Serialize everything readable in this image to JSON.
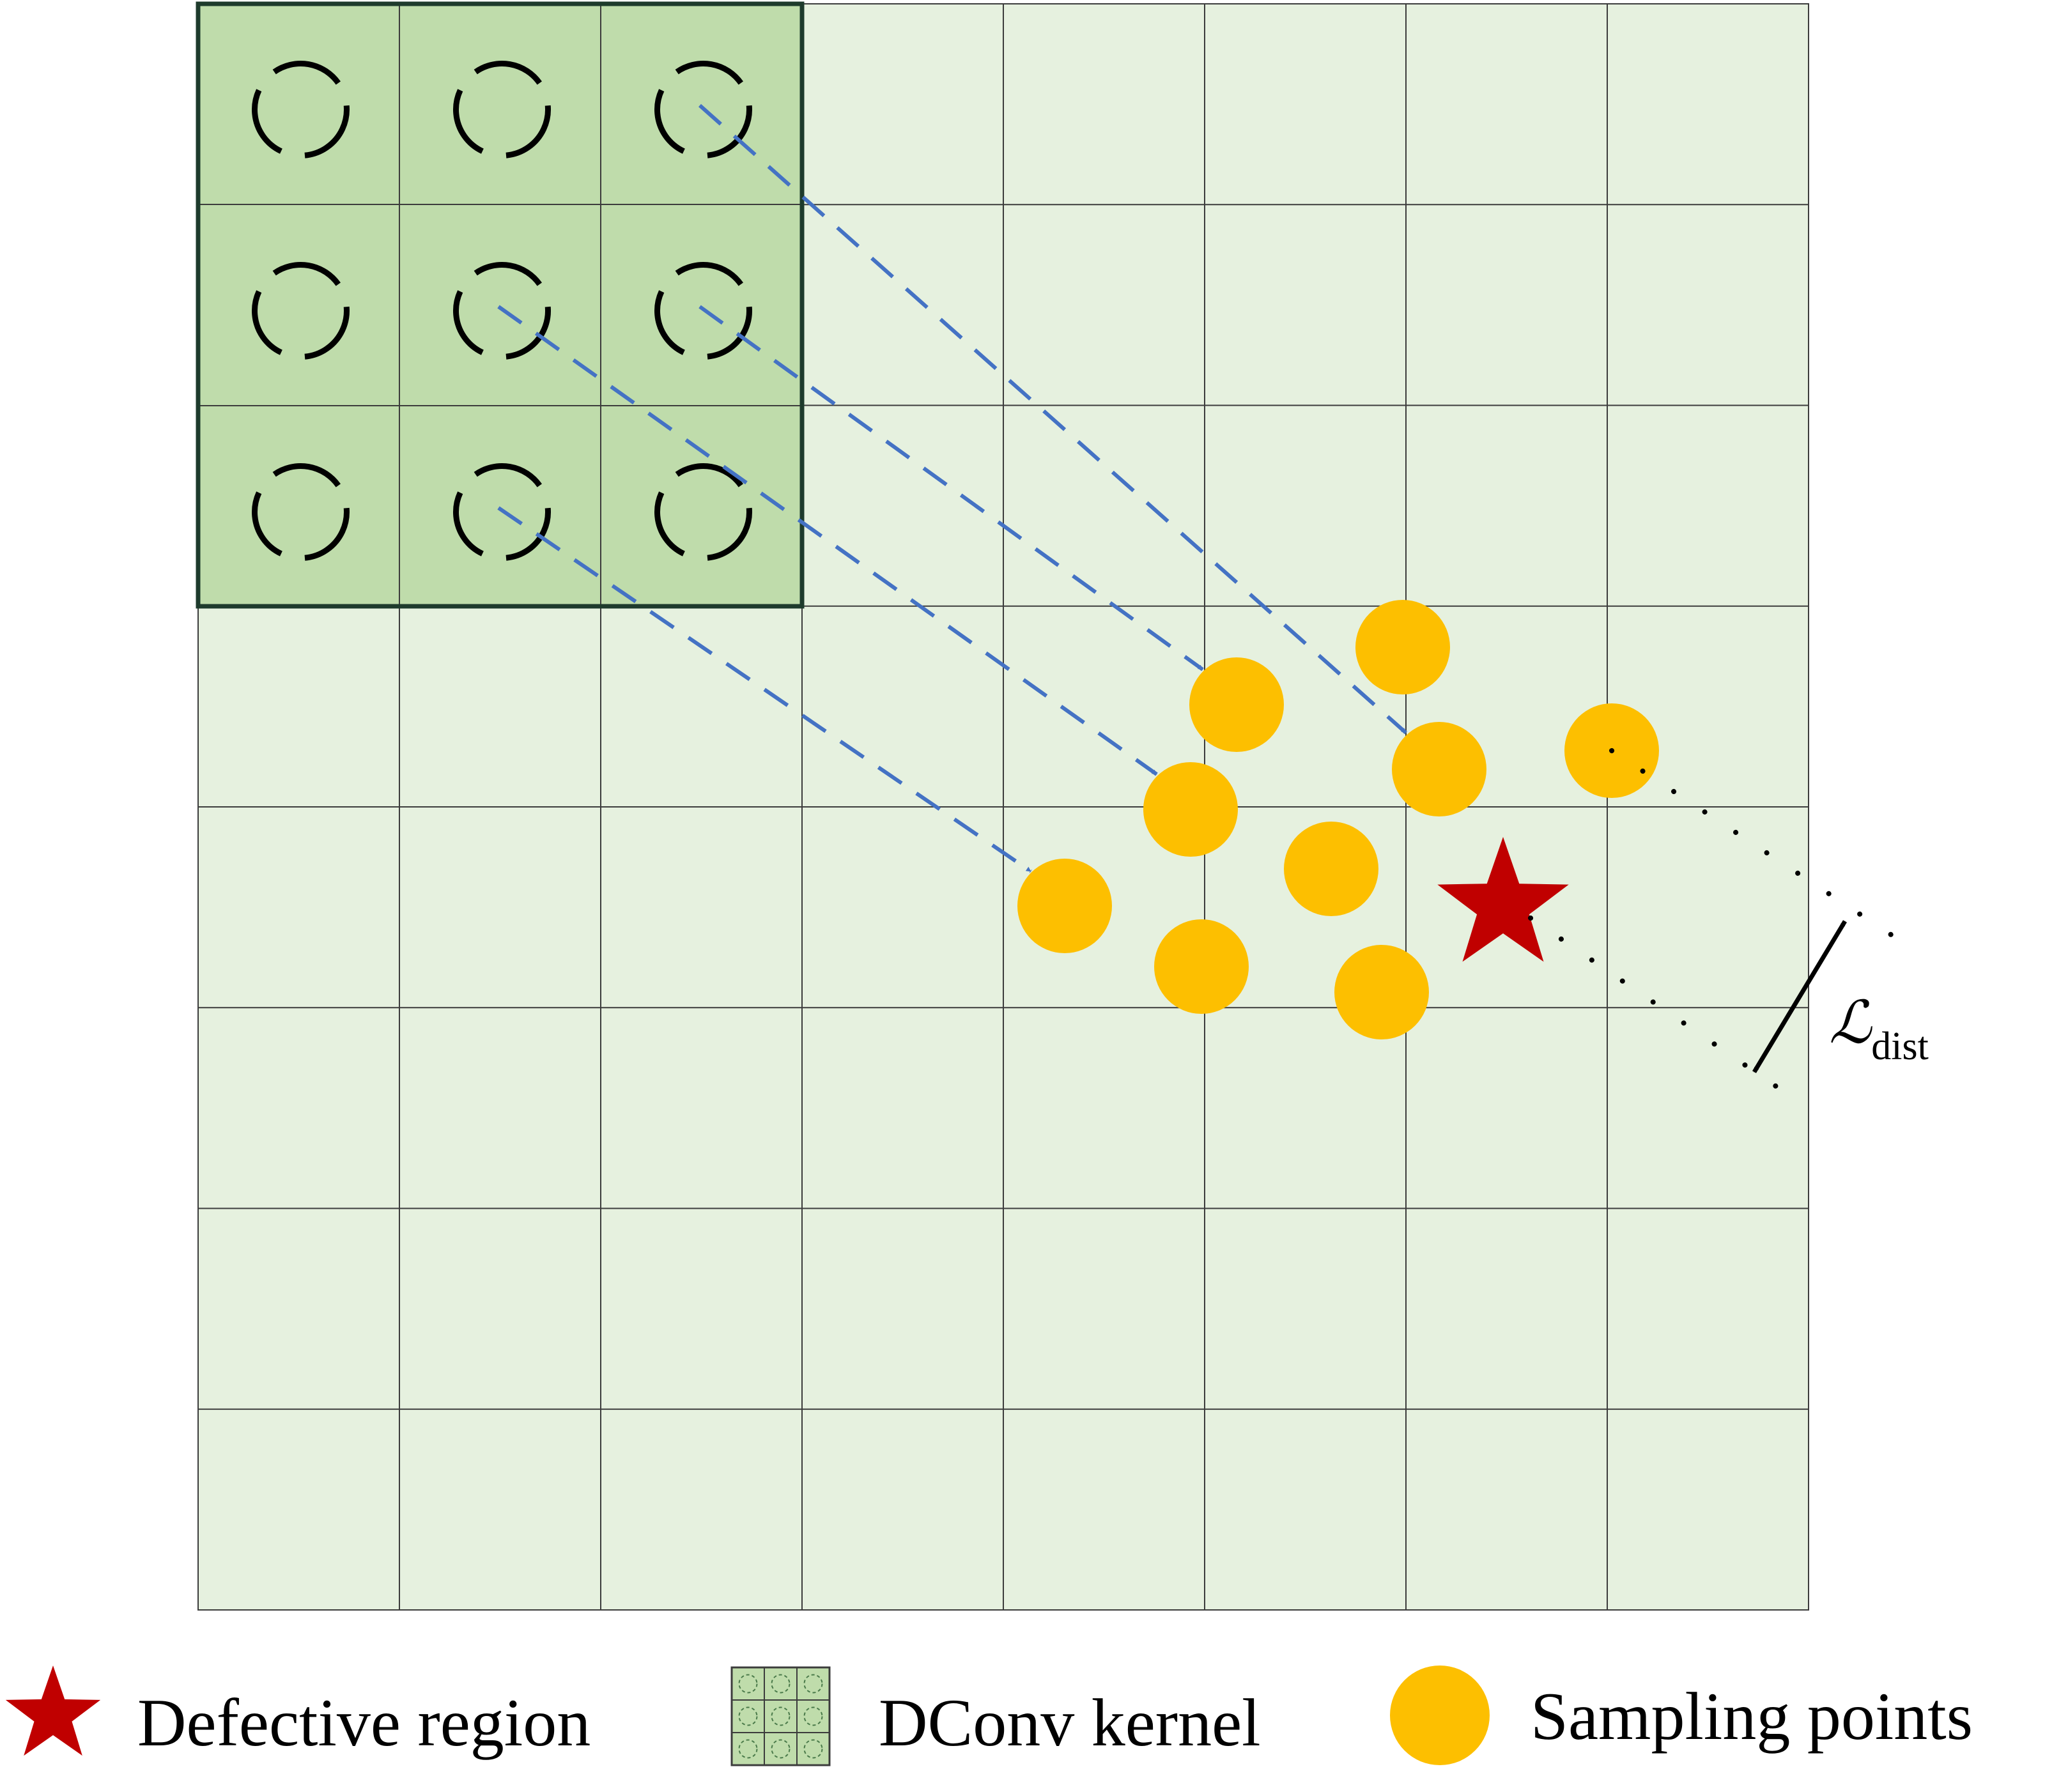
{
  "diagram": {
    "grid": {
      "rows": 8,
      "cols": 8
    },
    "kernel": {
      "rows": 3,
      "cols": 3
    },
    "dist_label": {
      "symbol": "ℒ",
      "subscript": "dist"
    },
    "legend": {
      "defective_region": "Defective region",
      "dconv_kernel": "DConv kernel",
      "sampling_points": "Sampling points"
    },
    "colors": {
      "grid_fill": "#e6f1df",
      "kernel_fill": "#bfdcab",
      "kernel_border": "#1e3b2c",
      "grid_line": "#3c3c3c",
      "sampling_point": "#fdbf00",
      "defect_star": "#c00000",
      "offset_arrow": "#4472c4",
      "dist_arrow": "#000000"
    },
    "icons": {
      "kernel_cell": "dashed-circle-icon",
      "defect": "star-icon",
      "sample": "filled-circle-icon"
    }
  }
}
